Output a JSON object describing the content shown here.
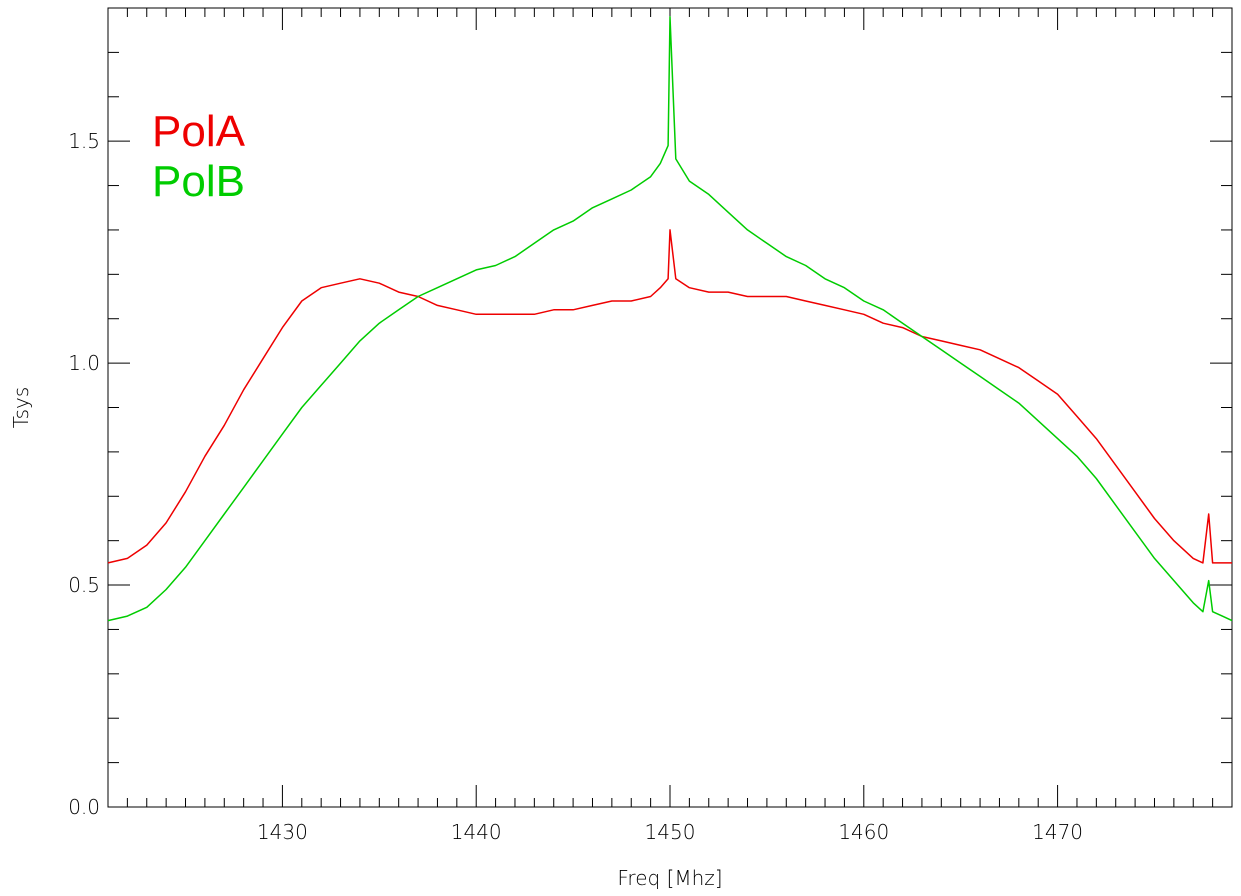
{
  "chart_data": {
    "type": "line",
    "title": "",
    "xlabel": "Freq [Mhz]",
    "ylabel": "Tsys",
    "xlim": [
      1421,
      1479
    ],
    "ylim": [
      0.0,
      1.8
    ],
    "x_ticks": [
      1430,
      1440,
      1450,
      1460,
      1470
    ],
    "x_tick_labels": [
      "1430",
      "1440",
      "1450",
      "1460",
      "1470"
    ],
    "y_ticks": [
      0.0,
      0.5,
      1.0,
      1.5
    ],
    "y_tick_labels": [
      "0.0",
      "0.5",
      "1.0",
      "1.5"
    ],
    "grid": false,
    "legend_position": "top-left",
    "series": [
      {
        "name": "PolA",
        "color": "#ee0000",
        "x": [
          1421,
          1422,
          1423,
          1424,
          1425,
          1426,
          1427,
          1428,
          1429,
          1430,
          1431,
          1432,
          1433,
          1434,
          1435,
          1436,
          1437,
          1438,
          1439,
          1440,
          1441,
          1442,
          1443,
          1444,
          1445,
          1446,
          1447,
          1448,
          1449,
          1449.5,
          1449.9,
          1450,
          1450.3,
          1451,
          1452,
          1453,
          1454,
          1455,
          1456,
          1457,
          1458,
          1459,
          1460,
          1461,
          1462,
          1463,
          1464,
          1465,
          1466,
          1467,
          1468,
          1469,
          1470,
          1471,
          1472,
          1473,
          1474,
          1475,
          1476,
          1477,
          1477.5,
          1477.8,
          1478,
          1478.5,
          1479
        ],
        "values": [
          0.55,
          0.56,
          0.59,
          0.64,
          0.71,
          0.79,
          0.86,
          0.94,
          1.01,
          1.08,
          1.14,
          1.17,
          1.18,
          1.19,
          1.18,
          1.16,
          1.15,
          1.13,
          1.12,
          1.11,
          1.11,
          1.11,
          1.11,
          1.12,
          1.12,
          1.13,
          1.14,
          1.14,
          1.15,
          1.17,
          1.19,
          1.3,
          1.19,
          1.17,
          1.16,
          1.16,
          1.15,
          1.15,
          1.15,
          1.14,
          1.13,
          1.12,
          1.11,
          1.09,
          1.08,
          1.06,
          1.05,
          1.04,
          1.03,
          1.01,
          0.99,
          0.96,
          0.93,
          0.88,
          0.83,
          0.77,
          0.71,
          0.65,
          0.6,
          0.56,
          0.55,
          0.66,
          0.55,
          0.55,
          0.55
        ]
      },
      {
        "name": "PolB",
        "color": "#00cc00",
        "x": [
          1421,
          1422,
          1423,
          1424,
          1425,
          1426,
          1427,
          1428,
          1429,
          1430,
          1431,
          1432,
          1433,
          1434,
          1435,
          1436,
          1437,
          1438,
          1439,
          1440,
          1441,
          1442,
          1443,
          1444,
          1445,
          1446,
          1447,
          1448,
          1449,
          1449.5,
          1449.9,
          1450,
          1450.3,
          1451,
          1452,
          1453,
          1454,
          1455,
          1456,
          1457,
          1458,
          1459,
          1460,
          1461,
          1462,
          1463,
          1464,
          1465,
          1466,
          1467,
          1468,
          1469,
          1470,
          1471,
          1472,
          1473,
          1474,
          1475,
          1476,
          1477,
          1477.5,
          1477.8,
          1478,
          1478.5,
          1479
        ],
        "values": [
          0.42,
          0.43,
          0.45,
          0.49,
          0.54,
          0.6,
          0.66,
          0.72,
          0.78,
          0.84,
          0.9,
          0.95,
          1.0,
          1.05,
          1.09,
          1.12,
          1.15,
          1.17,
          1.19,
          1.21,
          1.22,
          1.24,
          1.27,
          1.3,
          1.32,
          1.35,
          1.37,
          1.39,
          1.42,
          1.45,
          1.49,
          1.78,
          1.46,
          1.41,
          1.38,
          1.34,
          1.3,
          1.27,
          1.24,
          1.22,
          1.19,
          1.17,
          1.14,
          1.12,
          1.09,
          1.06,
          1.03,
          1.0,
          0.97,
          0.94,
          0.91,
          0.87,
          0.83,
          0.79,
          0.74,
          0.68,
          0.62,
          0.56,
          0.51,
          0.46,
          0.44,
          0.51,
          0.44,
          0.43,
          0.42
        ]
      }
    ],
    "legend": [
      {
        "label": "PolA",
        "color": "#ee0000"
      },
      {
        "label": "PolB",
        "color": "#00cc00"
      }
    ]
  }
}
